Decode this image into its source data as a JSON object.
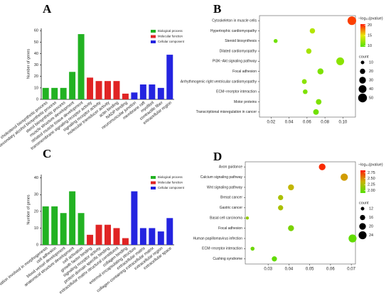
{
  "chart_data": [
    {
      "type": "bar",
      "label": "A",
      "ylabel": "Number of genes",
      "categories": [
        "cholesterol biosynthetic process",
        "secondary alcohol biosynthetic process",
        "sterol biosynthetic process",
        "muscle structure development",
        "striated muscle tissue development",
        "transmembrane signaling receptor activity",
        "signaling receptor activity",
        "molecular transducer activity",
        "actin binding",
        "NADP binding",
        "neuromuscular junction",
        "membrane raft",
        "myofibril",
        "contractile fiber",
        "extracellular region"
      ],
      "values": [
        10,
        10,
        10,
        24,
        57,
        19,
        16,
        16,
        16,
        5,
        6,
        13,
        13,
        10,
        39
      ],
      "colors": [
        "#22b222",
        "#22b222",
        "#22b222",
        "#22b222",
        "#22b222",
        "#e02424",
        "#e02424",
        "#e02424",
        "#e02424",
        "#e02424",
        "#2424e0",
        "#2424e0",
        "#2424e0",
        "#2424e0",
        "#2424e0"
      ],
      "legend": [
        {
          "name": "Biological process",
          "color": "#22b222"
        },
        {
          "name": "Molecular function",
          "color": "#e02424"
        },
        {
          "name": "Cellular component",
          "color": "#2424e0"
        }
      ],
      "ylim": [
        0,
        62
      ],
      "yticks": [
        0,
        10,
        20,
        30,
        40,
        50,
        60
      ]
    },
    {
      "type": "dot",
      "label": "B",
      "categories": [
        "Cytoskeleton in muscle cells",
        "Hypertrophic cardiomyopathy",
        "Steroid biosynthesis",
        "Dilated cardiomyopathy",
        "PI3K−Akt signaling pathway",
        "Focal adhesion",
        "Arrhythmogenic right ventricular cardiomyopathy",
        "ECM−receptor interaction",
        "Motor proteins",
        "Transcriptional misregulation in cancer"
      ],
      "x": [
        0.11,
        0.066,
        0.025,
        0.062,
        0.097,
        0.075,
        0.057,
        0.058,
        0.073,
        0.07
      ],
      "color_values": [
        19.5,
        13,
        10.5,
        12.5,
        11.5,
        11,
        11.5,
        11,
        11,
        10.5
      ],
      "counts": [
        48,
        20,
        12,
        20,
        40,
        25,
        17,
        16,
        22,
        22
      ],
      "xlim": [
        0.007,
        0.114
      ],
      "xticks": [
        0.02,
        0.04,
        0.06,
        0.08,
        {
          "value": 0.1,
          "label": "0.10"
        }
      ],
      "color_title": "−log₁₀(pvalue)",
      "color_lim": [
        9.5,
        20.5
      ],
      "color_ticks": [
        10,
        15,
        20
      ],
      "colorscale": [
        "#55e000",
        "#e8e800",
        "#ff1a00"
      ],
      "size_title": "count",
      "size_ticks": [
        10,
        20,
        30,
        40,
        50
      ]
    },
    {
      "type": "bar",
      "label": "C",
      "ylabel": "Number of genes",
      "categories": [
        "anatomical structure formation involved in morphogenesis",
        "cell adhesion",
        "blood vessel development",
        "anatomical structure development",
        "cell activation",
        "growth factor binding",
        "signaling receptor activity",
        "protein domain specific binding",
        "extracellular matrix structural constituent",
        "collagen binding",
        "external encapsulating structure",
        "extracellular matrix",
        "collagen-containing extracellular matrix",
        "extracellular region",
        "extracellular space"
      ],
      "values": [
        23,
        23,
        19,
        32,
        19,
        6,
        12,
        12,
        10,
        4,
        32,
        10,
        10,
        8,
        16
      ],
      "colors": [
        "#22b222",
        "#22b222",
        "#22b222",
        "#22b222",
        "#22b222",
        "#e02424",
        "#e02424",
        "#e02424",
        "#e02424",
        "#e02424",
        "#2424e0",
        "#2424e0",
        "#2424e0",
        "#2424e0",
        "#2424e0"
      ],
      "legend": [
        {
          "name": "Biological process",
          "color": "#22b222"
        },
        {
          "name": "Molecular function",
          "color": "#e02424"
        },
        {
          "name": "Cellular component",
          "color": "#2424e0"
        }
      ],
      "ylim": [
        0,
        42
      ],
      "yticks": [
        0,
        10,
        20,
        30,
        40
      ]
    },
    {
      "type": "dot",
      "label": "D",
      "categories": [
        "Axon guidance",
        "Calcium signaling pathway",
        "Wnt signaling pathway",
        "Breast cancer",
        "Gastric cancer",
        "Basal cell carcinoma",
        "Focal adhesion",
        "Human papillomavirus infection",
        "ECM−receptor interaction",
        "Cushing syndrome"
      ],
      "x": [
        0.056,
        0.0666,
        0.041,
        0.036,
        0.036,
        0.02,
        0.041,
        0.0706,
        0.0225,
        0.033
      ],
      "color_values": [
        2.8,
        2.45,
        2.35,
        2.25,
        2.25,
        2.15,
        2.05,
        1.95,
        2.0,
        1.95
      ],
      "counts": [
        20,
        22,
        18,
        16,
        16,
        11,
        18,
        24,
        13,
        16
      ],
      "xlim": [
        0.019,
        0.072
      ],
      "xticks": [
        0.03,
        0.04,
        0.05,
        0.06,
        0.07
      ],
      "color_title": "−log₁₀(pvalue)",
      "color_lim": [
        1.9,
        2.85
      ],
      "color_ticks": [
        {
          "value": 2,
          "label": "2.00"
        },
        2.25,
        {
          "value": 2.5,
          "label": "2.50"
        },
        2.75
      ],
      "colorscale": [
        "#55e000",
        "#c8b400",
        "#ff1a00"
      ],
      "size_title": "count",
      "size_ticks": [
        12,
        16,
        20,
        24
      ]
    }
  ]
}
